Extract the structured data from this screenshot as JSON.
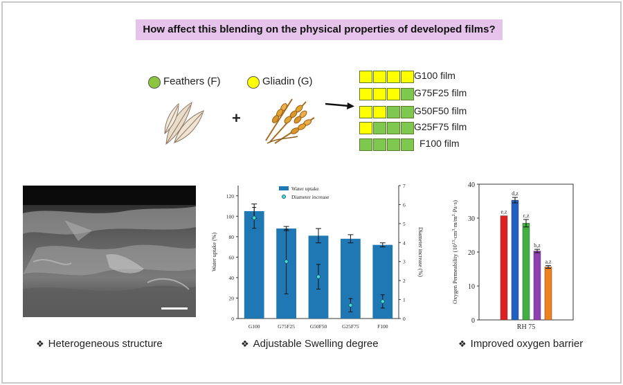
{
  "question": "How affect this blending on the physical properties of developed films?",
  "ingredients": [
    {
      "label": "Feathers (F)",
      "color": "#8cc63f"
    },
    {
      "label": "Gliadin (G)",
      "color": "#ffff00"
    }
  ],
  "plus": "+",
  "films": [
    {
      "label": "G100 film",
      "cells": [
        "Y",
        "Y",
        "Y",
        "Y"
      ]
    },
    {
      "label": "G75F25 film",
      "cells": [
        "Y",
        "Y",
        "Y",
        "G"
      ]
    },
    {
      "label": "G50F50 film",
      "cells": [
        "Y",
        "Y",
        "G",
        "G"
      ]
    },
    {
      "label": "G25F75 film",
      "cells": [
        "Y",
        "G",
        "G",
        "G"
      ]
    },
    {
      "label": "F100 film",
      "cells": [
        "G",
        "G",
        "G",
        "G"
      ]
    }
  ],
  "colors": {
    "gliadin": "#ffff00",
    "feathers": "#7ec850"
  },
  "captions": {
    "structure": "Heterogeneous structure",
    "swelling": "Adjustable Swelling degree",
    "oxygen": "Improved oxygen barrier"
  },
  "chart_data": [
    {
      "type": "bar",
      "categories": [
        "G100",
        "G75F25",
        "G50F50",
        "G25F75",
        "F100"
      ],
      "series": [
        {
          "name": "Water uptake",
          "values": [
            105,
            88,
            81,
            78,
            72
          ],
          "errors": [
            7,
            2,
            7,
            4,
            2
          ],
          "color": "#1f78b4",
          "axis": "left"
        },
        {
          "name": "Diameter increase",
          "values": [
            5.3,
            3.0,
            2.2,
            0.7,
            0.9
          ],
          "errors": [
            0.55,
            1.7,
            0.65,
            0.35,
            0.35
          ],
          "color": "#40e0d0",
          "axis": "right",
          "marker": "circle"
        }
      ],
      "ylabel": "Water uptake (%)",
      "ylabel_right": "Diameter increase (%)",
      "ylim": [
        0,
        130
      ],
      "ylim_right": [
        0,
        7
      ],
      "yticks": [
        0,
        20,
        40,
        60,
        80,
        100,
        120
      ],
      "yticks_right": [
        0,
        1,
        2,
        3,
        4,
        5,
        6,
        7
      ],
      "legend": "top-center"
    },
    {
      "type": "bar",
      "xlabel": "RH 75",
      "ylabel_parts": [
        "Oxygen Permeability (10",
        "13",
        "·cm",
        "3",
        "·m/m",
        "2",
        "·Pa·s)"
      ],
      "ylim": [
        0,
        40
      ],
      "yticks": [
        0,
        10,
        20,
        30,
        40
      ],
      "bars": [
        {
          "value": 30.7,
          "error": 0.0,
          "label": "e,z",
          "color": "#e02020"
        },
        {
          "value": 35.3,
          "error": 0.8,
          "label": "d,z",
          "color": "#2060c0"
        },
        {
          "value": 28.5,
          "error": 1.1,
          "label": "c,z",
          "color": "#40b040"
        },
        {
          "value": 20.3,
          "error": 0.5,
          "label": "b,z",
          "color": "#9040b0"
        },
        {
          "value": 15.6,
          "error": 0.4,
          "label": "a,z",
          "color": "#f08020"
        }
      ]
    }
  ]
}
